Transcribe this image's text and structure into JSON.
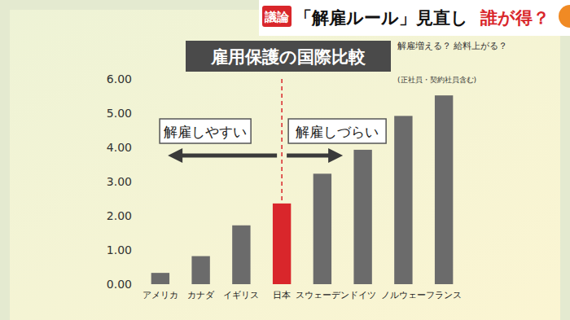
{
  "header": {
    "badge": "議論",
    "headline": "「解雇ルール」見直し",
    "question": "誰が得？",
    "subheading": "解雇増える？ 給料上がる？"
  },
  "chart_data": {
    "type": "bar",
    "title": "雇用保護の国際比較",
    "subtitle": "(正社員・契約社員含む)",
    "annotations": [
      "解雇しやすい",
      "解雇しづらい"
    ],
    "categories": [
      "アメリカ",
      "カナダ",
      "イギリス",
      "日本",
      "スウェーデン",
      "ドイツ",
      "ノルウェー",
      "フランス"
    ],
    "values": [
      0.33,
      0.82,
      1.72,
      2.36,
      3.23,
      3.93,
      4.92,
      5.52
    ],
    "colors": [
      "#6b6b6b",
      "#6b6b6b",
      "#6b6b6b",
      "#d9262b",
      "#6b6b6b",
      "#6b6b6b",
      "#6b6b6b",
      "#6b6b6b"
    ],
    "ylim": [
      0,
      6
    ],
    "yticks": [
      {
        "value": 0,
        "label": "0.00"
      },
      {
        "value": 1,
        "label": "1.00"
      },
      {
        "value": 2,
        "label": "2.00"
      },
      {
        "value": 3,
        "label": "3.00"
      },
      {
        "value": 4,
        "label": "4.00"
      },
      {
        "value": 5,
        "label": "5.00"
      },
      {
        "value": 6,
        "label": "6.00"
      }
    ],
    "grid": false
  }
}
